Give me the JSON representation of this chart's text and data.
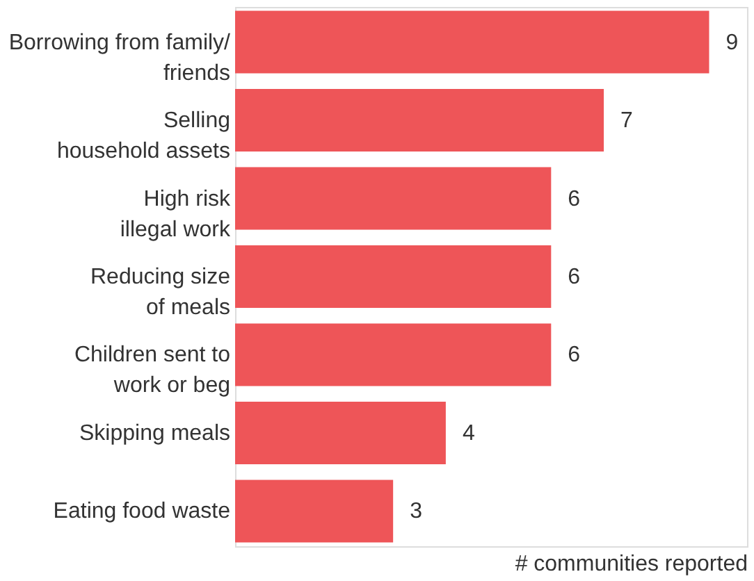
{
  "chart_data": {
    "type": "bar",
    "orientation": "horizontal",
    "xlabel": "# communities reported",
    "categories": [
      "Borrowing from family/\nfriends",
      "Selling\nhousehold assets",
      "High risk\nillegal work",
      "Reducing size\nof meals",
      "Children sent to\nwork or beg",
      "Skipping meals",
      "Eating food waste"
    ],
    "values": [
      9,
      7,
      6,
      6,
      6,
      4,
      3
    ],
    "color": "#ee5558",
    "data_labels": true
  }
}
